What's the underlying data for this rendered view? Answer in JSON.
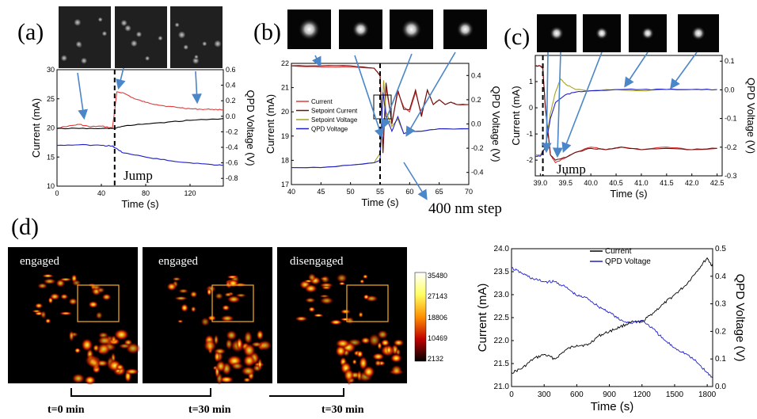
{
  "panels": {
    "a": {
      "label": "(a)"
    },
    "b": {
      "label": "(b)"
    },
    "c": {
      "label": "(c)"
    },
    "d": {
      "label": "(d)"
    }
  },
  "annotations": {
    "jump_a": "Jump",
    "jump_c": "Jump",
    "step_b": "400 nm step"
  },
  "images_d": [
    {
      "label": "engaged"
    },
    {
      "label": "engaged"
    },
    {
      "label": "disengaged"
    }
  ],
  "colorbar": {
    "ticks": [
      "35480",
      "27143",
      "18806",
      "10469",
      "2132"
    ]
  },
  "time_labels": [
    "t=0 min",
    "t=30 min",
    "t=30 min"
  ],
  "colors": {
    "current_red": "#e03a3a",
    "current_dark": "#6b1010",
    "setpoint_v": "#a8a020",
    "qpd_blue": "#2020c8",
    "black": "#000000",
    "arrow": "#4a86c8",
    "box": "#e8a020"
  },
  "chart_data": [
    {
      "type": "line",
      "panel": "a",
      "xlabel": "Time (s)",
      "ylabel": "Current (mA)",
      "y2label": "QPD Voltage (V)",
      "xlim": [
        0,
        150
      ],
      "ylim": [
        10,
        30
      ],
      "y2lim": [
        -0.9,
        0.6
      ],
      "xticks": [
        "0",
        "40",
        "80",
        "120"
      ],
      "yticks": [
        "10",
        "15",
        "20",
        "25",
        "30"
      ],
      "y2ticks": [
        "-0.8",
        "-0.6",
        "-0.4",
        "-0.2",
        "0.0",
        "0.2",
        "0.4",
        "0.6"
      ],
      "series": [
        {
          "color_key": "current_red",
          "axis": "y",
          "x": [
            0,
            10,
            20,
            30,
            40,
            50,
            52,
            54,
            60,
            70,
            80,
            90,
            100,
            110,
            120,
            130,
            140,
            150
          ],
          "values": [
            20,
            20.3,
            20.6,
            20.2,
            20.3,
            20.0,
            23,
            26.2,
            26.0,
            25.0,
            24.4,
            24.0,
            23.7,
            23.5,
            23.3,
            23.2,
            23.2,
            23.1
          ]
        },
        {
          "color_key": "black",
          "axis": "y",
          "x": [
            0,
            20,
            40,
            50,
            60,
            80,
            100,
            120,
            150
          ],
          "values": [
            19.9,
            19.9,
            19.9,
            19.9,
            20.3,
            20.7,
            21.0,
            21.3,
            21.6
          ]
        },
        {
          "color_key": "qpd_blue",
          "axis": "y",
          "x": [
            0,
            20,
            40,
            50,
            52,
            60,
            80,
            100,
            120,
            140,
            150
          ],
          "values": [
            17.0,
            17.1,
            17.0,
            16.9,
            16.6,
            15.7,
            15.0,
            14.4,
            14.0,
            13.7,
            13.6
          ]
        }
      ],
      "marker_x": 52
    },
    {
      "type": "line",
      "panel": "b",
      "xlabel": "Time (s)",
      "ylabel": "Current (mA)",
      "y2label": "QPD Voltage (V)",
      "xlim": [
        40,
        70
      ],
      "ylim": [
        17,
        22
      ],
      "y2lim": [
        -0.5,
        0.5
      ],
      "xticks": [
        "40",
        "45",
        "50",
        "55",
        "60",
        "65",
        "70"
      ],
      "yticks": [
        "17",
        "18",
        "19",
        "20",
        "21",
        "22"
      ],
      "y2ticks": [
        "-0.4",
        "-0.2",
        "0.0",
        "0.2",
        "0.4"
      ],
      "legend": [
        "Current",
        "Setpoint Current",
        "Setpoint Voltage",
        "QPD Voltage"
      ],
      "legend_color_keys": [
        "current_red",
        "current_dark",
        "setpoint_v",
        "qpd_blue"
      ],
      "series": [
        {
          "name": "Current",
          "color_key": "current_red",
          "axis": "y",
          "x": [
            40,
            45,
            50,
            54,
            55,
            55.5,
            56,
            57,
            58,
            59,
            60,
            61,
            62,
            63,
            64,
            65,
            66,
            67,
            68,
            70
          ],
          "values": [
            21.9,
            21.85,
            21.85,
            21.8,
            21.5,
            18.5,
            21.0,
            19.6,
            20.8,
            20.2,
            20.0,
            20.8,
            19.9,
            20.9,
            20.3,
            20.5,
            20.3,
            20.4,
            20.3,
            20.3
          ]
        },
        {
          "name": "Setpoint Current",
          "color_key": "current_dark",
          "axis": "y",
          "x": [
            40,
            45,
            50,
            54,
            55,
            55.5,
            56,
            57,
            58,
            59,
            60,
            61,
            62,
            63,
            64,
            65,
            66,
            67,
            68,
            70
          ],
          "values": [
            21.9,
            21.9,
            21.9,
            21.8,
            21.5,
            18.3,
            21.2,
            19.5,
            20.9,
            20.1,
            20.1,
            20.9,
            19.8,
            20.9,
            20.3,
            20.5,
            20.3,
            20.4,
            20.3,
            20.3
          ]
        },
        {
          "name": "Setpoint Voltage",
          "color_key": "setpoint_v",
          "axis": "y",
          "x": [
            40,
            45,
            50,
            54,
            55,
            55.6,
            56,
            57,
            58,
            59,
            60,
            62,
            65,
            70
          ],
          "values": [
            17.7,
            17.7,
            17.8,
            17.9,
            18.3,
            21.3,
            20.0,
            19.4,
            19.7,
            19.1,
            19.2,
            19.2,
            19.3,
            19.3
          ]
        },
        {
          "name": "QPD Voltage",
          "color_key": "qpd_blue",
          "axis": "y",
          "x": [
            40,
            45,
            50,
            54,
            55,
            55.5,
            56,
            57,
            58,
            59,
            60,
            62,
            65,
            70
          ],
          "values": [
            17.7,
            17.7,
            17.8,
            17.9,
            18.0,
            20.8,
            19.8,
            19.2,
            19.8,
            19.1,
            19.2,
            19.2,
            19.3,
            19.3
          ]
        }
      ],
      "marker_x": 55
    },
    {
      "type": "line",
      "panel": "c",
      "xlabel": "Time (s)",
      "ylabel": "Current (mA)",
      "y2label": "QPD Voltage (V)",
      "xlim": [
        38.9,
        42.6
      ],
      "ylim": [
        -2.6,
        2.0
      ],
      "y2lim": [
        -0.3,
        0.12
      ],
      "xticks": [
        "39.0",
        "39.5",
        "40.0",
        "40.5",
        "41.0",
        "41.5",
        "42.0",
        "42.5"
      ],
      "yticks": [
        "-2",
        "-1",
        "0",
        "1"
      ],
      "y2ticks": [
        "-0.3",
        "-0.2",
        "-0.1",
        "0.0",
        "0.1"
      ],
      "series": [
        {
          "color_key": "current_red",
          "axis": "y",
          "x": [
            38.9,
            39.0,
            39.05,
            39.1,
            39.2,
            39.3,
            39.5,
            39.7,
            40.0,
            40.3,
            40.6,
            41.0,
            41.5,
            42.0,
            42.5
          ],
          "values": [
            1.6,
            1.6,
            1.5,
            0.0,
            -1.8,
            -2.1,
            -1.9,
            -1.7,
            -1.5,
            -1.6,
            -1.5,
            -1.6,
            -1.5,
            -1.6,
            -1.55
          ]
        },
        {
          "color_key": "current_dark",
          "axis": "y",
          "x": [
            38.9,
            39.0,
            39.05,
            39.1,
            39.2,
            39.3,
            39.5,
            39.7,
            40.0,
            40.3,
            40.6,
            41.0,
            41.5,
            42.0,
            42.5
          ],
          "values": [
            1.6,
            1.6,
            1.5,
            0.0,
            -1.8,
            -2.0,
            -1.9,
            -1.7,
            -1.55,
            -1.6,
            -1.5,
            -1.6,
            -1.55,
            -1.6,
            -1.55
          ]
        },
        {
          "color_key": "setpoint_v",
          "axis": "y",
          "x": [
            38.9,
            39.0,
            39.1,
            39.2,
            39.3,
            39.4,
            39.5,
            39.7,
            40.0,
            40.5,
            41.0,
            41.5,
            42.0,
            42.5
          ],
          "values": [
            -1.8,
            -1.8,
            -1.5,
            -0.2,
            0.6,
            1.1,
            0.9,
            0.7,
            0.65,
            0.7,
            0.65,
            0.7,
            0.7,
            0.7
          ]
        },
        {
          "color_key": "qpd_blue",
          "axis": "y",
          "x": [
            38.9,
            39.0,
            39.1,
            39.2,
            39.3,
            39.5,
            39.7,
            40.0,
            40.5,
            41.0,
            41.5,
            42.0,
            42.5
          ],
          "values": [
            -1.85,
            -1.85,
            -1.5,
            -0.4,
            0.2,
            0.5,
            0.6,
            0.65,
            0.7,
            0.7,
            0.7,
            0.7,
            0.7
          ]
        }
      ],
      "marker_x": 39.05
    },
    {
      "type": "line",
      "panel": "d-right",
      "xlabel": "Time (s)",
      "ylabel": "Current (mA)",
      "y2label": "QPD Voltage (V)",
      "xlim": [
        0,
        1850
      ],
      "ylim": [
        21.0,
        24.0
      ],
      "y2lim": [
        0.0,
        0.5
      ],
      "xticks": [
        "0",
        "300",
        "600",
        "900",
        "1200",
        "1500",
        "1800"
      ],
      "yticks": [
        "21.0",
        "21.5",
        "22.0",
        "22.5",
        "23.0",
        "23.5",
        "24.0"
      ],
      "y2ticks": [
        "0.0",
        "0.1",
        "0.2",
        "0.3",
        "0.4",
        "0.5"
      ],
      "legend": [
        "Current",
        "QPD Voltage"
      ],
      "legend_color_keys": [
        "black",
        "qpd_blue"
      ],
      "series": [
        {
          "name": "Current",
          "color_key": "black",
          "axis": "y",
          "x": [
            0,
            100,
            200,
            300,
            400,
            500,
            600,
            700,
            800,
            900,
            1000,
            1100,
            1200,
            1300,
            1400,
            1500,
            1600,
            1700,
            1800,
            1850
          ],
          "values": [
            21.3,
            21.4,
            21.6,
            21.7,
            21.6,
            21.8,
            21.9,
            21.9,
            22.1,
            22.2,
            22.3,
            22.4,
            22.4,
            22.6,
            22.8,
            23.0,
            23.2,
            23.5,
            23.8,
            23.6
          ]
        },
        {
          "name": "QPD Voltage",
          "color_key": "qpd_blue",
          "axis": "y2",
          "x": [
            0,
            100,
            200,
            300,
            400,
            500,
            600,
            700,
            800,
            900,
            1000,
            1100,
            1200,
            1300,
            1400,
            1500,
            1600,
            1700,
            1800,
            1850
          ],
          "values": [
            0.43,
            0.41,
            0.39,
            0.38,
            0.38,
            0.36,
            0.33,
            0.32,
            0.29,
            0.27,
            0.24,
            0.23,
            0.24,
            0.21,
            0.17,
            0.14,
            0.12,
            0.09,
            0.05,
            0.03
          ]
        }
      ]
    }
  ]
}
